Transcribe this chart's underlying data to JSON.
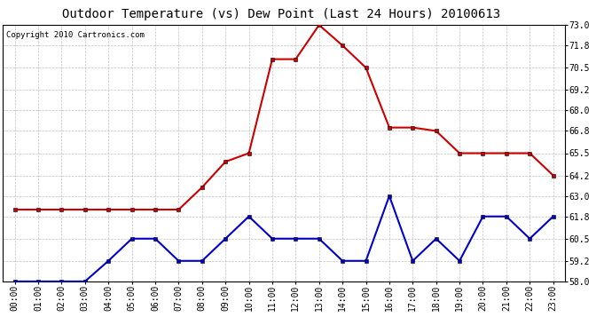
{
  "title": "Outdoor Temperature (vs) Dew Point (Last 24 Hours) 20100613",
  "copyright": "Copyright 2010 Cartronics.com",
  "hours": [
    "00:00",
    "01:00",
    "02:00",
    "03:00",
    "04:00",
    "05:00",
    "06:00",
    "07:00",
    "08:00",
    "09:00",
    "10:00",
    "11:00",
    "12:00",
    "13:00",
    "14:00",
    "15:00",
    "16:00",
    "17:00",
    "18:00",
    "19:00",
    "20:00",
    "21:00",
    "22:00",
    "23:00"
  ],
  "temp": [
    62.2,
    62.2,
    62.2,
    62.2,
    62.2,
    62.2,
    62.2,
    62.2,
    63.5,
    65.0,
    65.5,
    71.0,
    71.0,
    73.0,
    71.8,
    70.5,
    67.0,
    67.0,
    66.8,
    65.5,
    65.5,
    65.5,
    65.5,
    64.2
  ],
  "dew": [
    58.0,
    58.0,
    58.0,
    58.0,
    59.2,
    60.5,
    60.5,
    59.2,
    59.2,
    60.5,
    61.8,
    60.5,
    60.5,
    60.5,
    59.2,
    59.2,
    63.0,
    59.2,
    60.5,
    59.2,
    61.8,
    61.8,
    60.5,
    61.8
  ],
  "temp_color": "#cc0000",
  "dew_color": "#0000cc",
  "bg_color": "#ffffff",
  "grid_color": "#c0c0c0",
  "ylim_min": 58.0,
  "ylim_max": 73.0,
  "yticks": [
    58.0,
    59.2,
    60.5,
    61.8,
    63.0,
    64.2,
    65.5,
    66.8,
    68.0,
    69.2,
    70.5,
    71.8,
    73.0
  ],
  "markersize": 3.5,
  "linewidth": 1.5,
  "title_fontsize": 10,
  "tick_fontsize": 7,
  "copyright_fontsize": 6.5
}
